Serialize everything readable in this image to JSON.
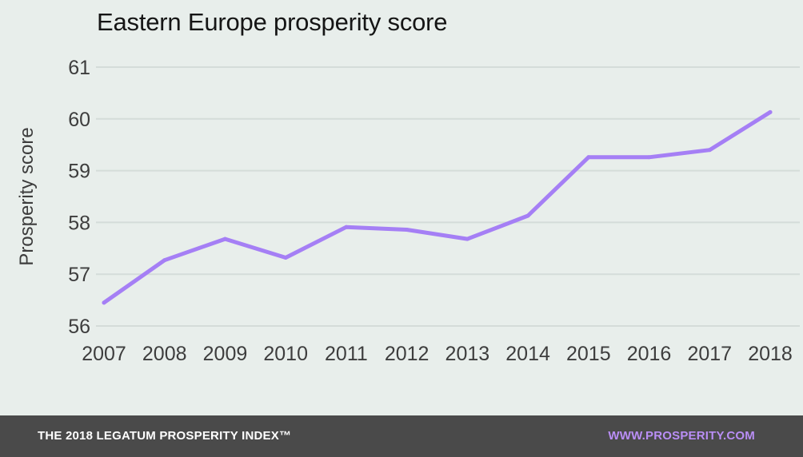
{
  "chart_data": {
    "type": "line",
    "title": "Eastern Europe prosperity score",
    "xlabel": "",
    "ylabel": "Prosperity score",
    "x": [
      "2007",
      "2008",
      "2009",
      "2010",
      "2011",
      "2012",
      "2013",
      "2014",
      "2015",
      "2016",
      "2017",
      "2018"
    ],
    "y_ticks": [
      "56",
      "57",
      "58",
      "59",
      "60",
      "61"
    ],
    "ylim": [
      56,
      61
    ],
    "grid": true,
    "series": [
      {
        "values": [
          56.45,
          57.27,
          57.68,
          57.32,
          57.91,
          57.86,
          57.68,
          58.13,
          59.26,
          59.26,
          59.4,
          60.13
        ],
        "color": "#a57ff5"
      }
    ]
  },
  "footer": {
    "left": "THE 2018 LEGATUM PROSPERITY INDEX™",
    "right": "WWW.PROSPERITY.COM"
  },
  "colors": {
    "background": "#e8eeeb",
    "grid": "#d4dcd9",
    "line": "#a57ff5",
    "footer_bg": "#4a4a4a",
    "footer_accent": "#b98ef5"
  }
}
